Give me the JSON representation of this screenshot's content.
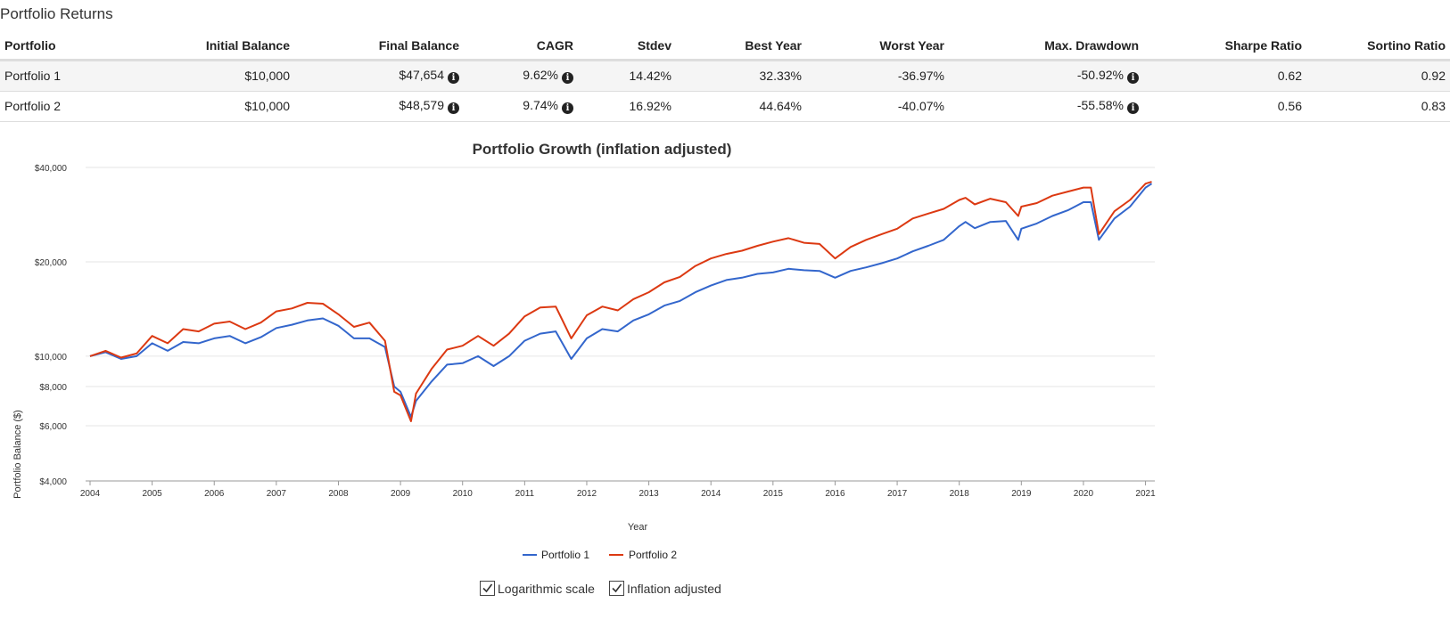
{
  "section_title": "Portfolio Returns",
  "table": {
    "headers": [
      "Portfolio",
      "Initial Balance",
      "Final Balance",
      "CAGR",
      "Stdev",
      "Best Year",
      "Worst Year",
      "Max. Drawdown",
      "Sharpe Ratio",
      "Sortino Ratio"
    ],
    "rows": [
      {
        "name": "Portfolio 1",
        "initial": "$10,000",
        "final": "$47,654",
        "cagr": "9.62%",
        "stdev": "14.42%",
        "best": "32.33%",
        "worst": "-36.97%",
        "maxdd": "-50.92%",
        "sharpe": "0.62",
        "sortino": "0.92"
      },
      {
        "name": "Portfolio 2",
        "initial": "$10,000",
        "final": "$48,579",
        "cagr": "9.74%",
        "stdev": "16.92%",
        "best": "44.64%",
        "worst": "-40.07%",
        "maxdd": "-55.58%",
        "sharpe": "0.56",
        "sortino": "0.83"
      }
    ],
    "info_icon": "info-circle-icon"
  },
  "checkboxes": [
    {
      "label": "Logarithmic scale",
      "checked": true
    },
    {
      "label": "Inflation adjusted",
      "checked": true
    }
  ],
  "chart_data": {
    "type": "line",
    "title": "Portfolio Growth (inflation adjusted)",
    "xlabel": "Year",
    "ylabel": "Portfolio Balance ($)",
    "scale": "log",
    "ylim": [
      4000,
      40000
    ],
    "xlim": [
      2004,
      2021.15
    ],
    "yticks": [
      {
        "v": 4000,
        "label": "$4,000"
      },
      {
        "v": 6000,
        "label": "$6,000"
      },
      {
        "v": 8000,
        "label": "$8,000"
      },
      {
        "v": 10000,
        "label": "$10,000"
      },
      {
        "v": 20000,
        "label": "$20,000"
      },
      {
        "v": 40000,
        "label": "$40,000"
      }
    ],
    "xticks": [
      "2004",
      "2005",
      "2006",
      "2007",
      "2008",
      "2009",
      "2010",
      "2011",
      "2012",
      "2013",
      "2014",
      "2015",
      "2016",
      "2017",
      "2018",
      "2019",
      "2020",
      "2021"
    ],
    "legend_position": "bottom-center",
    "series": [
      {
        "name": "Portfolio 1",
        "color": "#3366cc",
        "x": [
          2004.0,
          2004.25,
          2004.5,
          2004.75,
          2005.0,
          2005.25,
          2005.5,
          2005.75,
          2006.0,
          2006.25,
          2006.5,
          2006.75,
          2007.0,
          2007.25,
          2007.5,
          2007.75,
          2008.0,
          2008.25,
          2008.5,
          2008.75,
          2008.9,
          2009.0,
          2009.17,
          2009.25,
          2009.5,
          2009.75,
          2010.0,
          2010.25,
          2010.5,
          2010.75,
          2011.0,
          2011.25,
          2011.5,
          2011.75,
          2012.0,
          2012.25,
          2012.5,
          2012.75,
          2013.0,
          2013.25,
          2013.5,
          2013.75,
          2014.0,
          2014.25,
          2014.5,
          2014.75,
          2015.0,
          2015.25,
          2015.5,
          2015.75,
          2016.0,
          2016.25,
          2016.5,
          2016.75,
          2017.0,
          2017.25,
          2017.5,
          2017.75,
          2018.0,
          2018.1,
          2018.25,
          2018.5,
          2018.75,
          2018.95,
          2019.0,
          2019.25,
          2019.5,
          2019.75,
          2020.0,
          2020.12,
          2020.25,
          2020.5,
          2020.75,
          2021.0,
          2021.1
        ],
        "y": [
          10000,
          10300,
          9800,
          10000,
          11000,
          10400,
          11100,
          11000,
          11400,
          11600,
          11000,
          11500,
          12300,
          12600,
          13000,
          13200,
          12500,
          11400,
          11400,
          10700,
          8000,
          7700,
          6400,
          7200,
          8300,
          9400,
          9500,
          10000,
          9300,
          10000,
          11200,
          11800,
          12000,
          9800,
          11400,
          12200,
          12000,
          13000,
          13600,
          14500,
          15000,
          16000,
          16800,
          17500,
          17800,
          18300,
          18500,
          19000,
          18800,
          18700,
          17800,
          18700,
          19200,
          19800,
          20500,
          21600,
          22500,
          23500,
          26000,
          26800,
          25600,
          26800,
          27000,
          23500,
          25500,
          26500,
          28000,
          29200,
          31000,
          31000,
          23500,
          27500,
          30000,
          34500,
          35500
        ]
      },
      {
        "name": "Portfolio 2",
        "color": "#dc3912",
        "x": [
          2004.0,
          2004.25,
          2004.5,
          2004.75,
          2005.0,
          2005.25,
          2005.5,
          2005.75,
          2006.0,
          2006.25,
          2006.5,
          2006.75,
          2007.0,
          2007.25,
          2007.5,
          2007.75,
          2008.0,
          2008.25,
          2008.5,
          2008.75,
          2008.9,
          2009.0,
          2009.17,
          2009.25,
          2009.5,
          2009.75,
          2010.0,
          2010.25,
          2010.5,
          2010.75,
          2011.0,
          2011.25,
          2011.5,
          2011.75,
          2012.0,
          2012.25,
          2012.5,
          2012.75,
          2013.0,
          2013.25,
          2013.5,
          2013.75,
          2014.0,
          2014.25,
          2014.5,
          2014.75,
          2015.0,
          2015.25,
          2015.5,
          2015.75,
          2016.0,
          2016.25,
          2016.5,
          2016.75,
          2017.0,
          2017.25,
          2017.5,
          2017.75,
          2018.0,
          2018.1,
          2018.25,
          2018.5,
          2018.75,
          2018.95,
          2019.0,
          2019.25,
          2019.5,
          2019.75,
          2020.0,
          2020.12,
          2020.25,
          2020.5,
          2020.75,
          2021.0,
          2021.1
        ],
        "y": [
          10000,
          10400,
          9900,
          10200,
          11600,
          11000,
          12200,
          12000,
          12700,
          12900,
          12200,
          12800,
          13900,
          14200,
          14800,
          14700,
          13600,
          12400,
          12800,
          11200,
          7700,
          7500,
          6200,
          7600,
          9100,
          10500,
          10800,
          11600,
          10800,
          11800,
          13400,
          14300,
          14400,
          11400,
          13500,
          14400,
          14000,
          15200,
          16000,
          17200,
          17900,
          19400,
          20500,
          21200,
          21700,
          22500,
          23200,
          23800,
          23000,
          22800,
          20500,
          22300,
          23500,
          24500,
          25500,
          27500,
          28500,
          29500,
          31500,
          32000,
          30500,
          31800,
          31000,
          28000,
          30000,
          30800,
          32500,
          33500,
          34500,
          34500,
          24500,
          29000,
          31500,
          35500,
          36000
        ]
      }
    ]
  }
}
